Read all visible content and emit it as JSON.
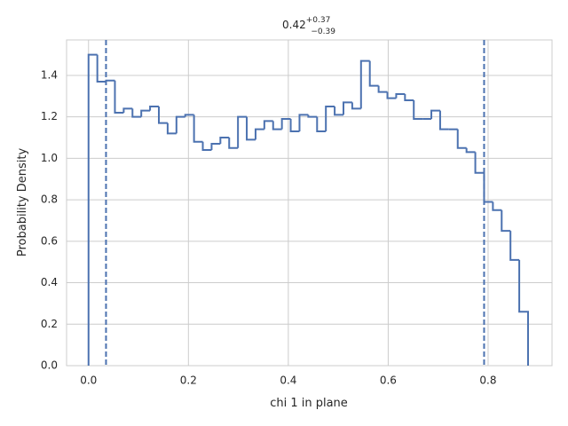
{
  "chart_data": {
    "type": "histogram",
    "title": {
      "value": "0.42",
      "plus": "+0.37",
      "minus": "−0.39"
    },
    "x_label": "chi 1 in plane",
    "y_label": "Probability Density",
    "bins": [
      0,
      0.0176,
      0.0352,
      0.0528,
      0.0704,
      0.088,
      0.1056,
      0.1232,
      0.1408,
      0.1584,
      0.176,
      0.1936,
      0.2112,
      0.2288,
      0.2464,
      0.264,
      0.2816,
      0.2992,
      0.3168,
      0.3344,
      0.352,
      0.3696,
      0.3872,
      0.4048,
      0.4224,
      0.44,
      0.4576,
      0.4752,
      0.4928,
      0.5104,
      0.528,
      0.5456,
      0.5632,
      0.5808,
      0.5984,
      0.616,
      0.6336,
      0.6512,
      0.6688,
      0.6864,
      0.704,
      0.7216,
      0.7392,
      0.7568,
      0.7744,
      0.792,
      0.8096,
      0.8272,
      0.8448,
      0.8624,
      0.88
    ],
    "values": [
      1.5,
      1.37,
      1.375,
      1.22,
      1.24,
      1.2,
      1.23,
      1.25,
      1.17,
      1.12,
      1.2,
      1.21,
      1.08,
      1.04,
      1.07,
      1.1,
      1.05,
      1.2,
      1.09,
      1.14,
      1.18,
      1.14,
      1.19,
      1.13,
      1.21,
      1.2,
      1.13,
      1.25,
      1.21,
      1.27,
      1.24,
      1.47,
      1.35,
      1.32,
      1.29,
      1.31,
      1.28,
      1.19,
      1.19,
      1.23,
      1.14,
      1.14,
      1.05,
      1.03,
      0.93,
      0.79,
      0.75,
      0.65,
      0.51,
      0.26
    ],
    "quantile_lines": [
      0.035,
      0.792
    ],
    "color": "#4c72b0",
    "xlim": [
      -0.044,
      0.928
    ],
    "ylim": [
      0,
      1.571
    ],
    "xticks": [
      {
        "value": 0,
        "label": "0.0"
      },
      0.2,
      0.4,
      0.6,
      0.8
    ],
    "yticks": [
      {
        "value": 0,
        "label": "0.0"
      },
      0.2,
      0.4,
      0.6,
      0.8,
      {
        "value": 1,
        "label": "1.0"
      },
      1.2,
      1.4
    ],
    "grid": true
  }
}
